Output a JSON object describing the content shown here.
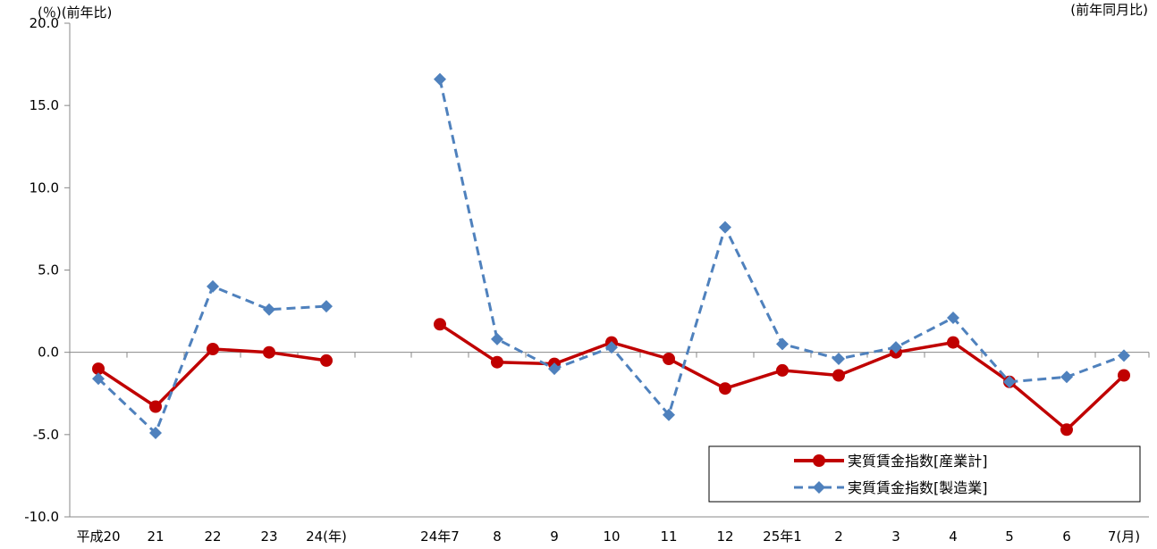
{
  "chart_data": {
    "type": "line",
    "y_unit_label": "(％)(前年比)",
    "right_unit_label": "(前年同月比)",
    "ylim": [
      -10.0,
      20.0
    ],
    "y_ticks": [
      "20.0",
      "15.0",
      "10.0",
      "5.0",
      "0.0",
      "-5.0",
      "-10.0"
    ],
    "categories": [
      "平成20",
      "21",
      "22",
      "23",
      "24(年)",
      "24年7",
      "8",
      "9",
      "10",
      "11",
      "12",
      "25年1",
      "2",
      "3",
      "4",
      "5",
      "6",
      "7(月)"
    ],
    "segments": [
      [
        0,
        4
      ],
      [
        5,
        17
      ]
    ],
    "grid": false,
    "legend_position": "bottom-right",
    "series": [
      {
        "name": "実質賃金指数[産業計]",
        "color": "#C00000",
        "style": "solid",
        "marker": "circle",
        "values": [
          -1.0,
          -3.3,
          0.2,
          0.0,
          -0.5,
          1.7,
          -0.6,
          -0.7,
          0.6,
          -0.4,
          -2.2,
          -1.1,
          -1.4,
          0.0,
          0.6,
          -1.8,
          -4.7,
          -1.4
        ]
      },
      {
        "name": "実質賃金指数[製造業]",
        "color": "#4F81BD",
        "style": "dashed",
        "marker": "diamond",
        "values": [
          -1.6,
          -4.9,
          4.0,
          2.6,
          2.8,
          16.6,
          0.8,
          -1.0,
          0.3,
          -3.8,
          7.6,
          0.5,
          -0.4,
          0.3,
          2.1,
          -1.8,
          -1.5,
          -0.2
        ]
      }
    ]
  }
}
